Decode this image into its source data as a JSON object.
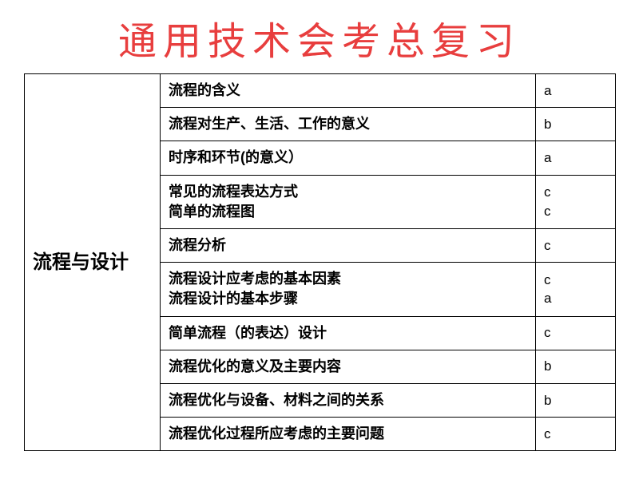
{
  "title": "通用技术会考总复习",
  "category": "流程与设计",
  "rows": [
    {
      "desc": "流程的含义",
      "level": "a"
    },
    {
      "desc": "流程对生产、生活、工作的意义",
      "level": "b"
    },
    {
      "desc": "时序和环节(的意义）",
      "level": "a"
    },
    {
      "desc": "常见的流程表达方式\n简单的流程图",
      "level": "c\nc"
    },
    {
      "desc": "流程分析",
      "level": "c"
    },
    {
      "desc": "流程设计应考虑的基本因素\n流程设计的基本步骤",
      "level": "c\na"
    },
    {
      "desc": "简单流程（的表达）设计",
      "level": "c"
    },
    {
      "desc": "流程优化的意义及主要内容",
      "level": "b"
    },
    {
      "desc": "流程优化与设备、材料之间的关系",
      "level": "b"
    },
    {
      "desc": "流程优化过程所应考虑的主要问题",
      "level": "c"
    }
  ],
  "colors": {
    "title_color": "#e83e3e",
    "border_color": "#000000",
    "text_color": "#000000",
    "background": "#ffffff"
  }
}
